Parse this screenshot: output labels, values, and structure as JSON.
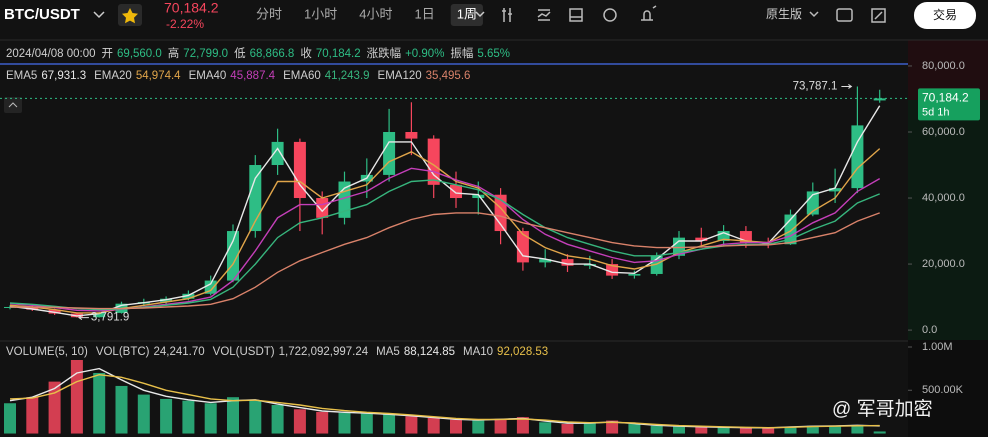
{
  "header": {
    "symbol": "BTC/USDT",
    "last_price": "70,184.2",
    "change": "-2.22%",
    "intervals": [
      "分时",
      "1小时",
      "4小时",
      "1日",
      "1周"
    ],
    "selected_interval": 4,
    "mode": "原生版",
    "trade_button": "交易"
  },
  "info_row": {
    "date": "2024/04/08 00:00",
    "items": [
      {
        "label": "开",
        "value": "69,560.0"
      },
      {
        "label": "高",
        "value": "72,799.0"
      },
      {
        "label": "低",
        "value": "68,866.8"
      },
      {
        "label": "收",
        "value": "70,184.2"
      },
      {
        "label": "涨跌幅",
        "value": "+0.90%"
      },
      {
        "label": "振幅",
        "value": "5.65%"
      }
    ]
  },
  "watermark": "@ 军哥加密",
  "chart_data": [
    {
      "type": "candlestick",
      "up_color": "#2ebd85",
      "down_color": "#f6465d",
      "ohlc": [
        [
          6800,
          7500,
          6300,
          7000
        ],
        [
          7000,
          7400,
          5800,
          6200
        ],
        [
          6200,
          6500,
          4600,
          5000
        ],
        [
          5000,
          5300,
          3791.9,
          3900
        ],
        [
          3900,
          5500,
          3800,
          5200
        ],
        [
          5200,
          8600,
          5000,
          8000
        ],
        [
          8000,
          9500,
          7200,
          8500
        ],
        [
          8500,
          10200,
          7800,
          9500
        ],
        [
          9500,
          12000,
          9000,
          11000
        ],
        [
          11000,
          16500,
          10500,
          15000
        ],
        [
          15000,
          32000,
          14500,
          30000
        ],
        [
          30000,
          53000,
          28000,
          50000
        ],
        [
          50000,
          61000,
          47000,
          57000
        ],
        [
          57000,
          58000,
          30000,
          40000
        ],
        [
          40000,
          42000,
          29000,
          34000
        ],
        [
          34000,
          48000,
          32000,
          45000
        ],
        [
          45000,
          52000,
          40000,
          47000
        ],
        [
          47000,
          67000,
          45000,
          60000
        ],
        [
          60000,
          69000,
          53000,
          58000
        ],
        [
          58000,
          59000,
          40000,
          44000
        ],
        [
          44000,
          48000,
          37000,
          40000
        ],
        [
          40000,
          45000,
          35000,
          41000
        ],
        [
          41000,
          43000,
          26000,
          30000
        ],
        [
          30000,
          31000,
          18000,
          20500
        ],
        [
          20500,
          24500,
          19000,
          21500
        ],
        [
          21500,
          23000,
          17600,
          19500
        ],
        [
          19500,
          22500,
          18500,
          20000
        ],
        [
          20000,
          21500,
          15500,
          16500
        ],
        [
          16500,
          18000,
          15600,
          17000
        ],
        [
          17000,
          23500,
          16500,
          22500
        ],
        [
          22500,
          30000,
          21500,
          28000
        ],
        [
          28000,
          31000,
          25000,
          27000
        ],
        [
          27000,
          31800,
          25500,
          30000
        ],
        [
          30000,
          31500,
          24900,
          26500
        ],
        [
          26500,
          28000,
          24800,
          26000
        ],
        [
          26000,
          36500,
          25800,
          35000
        ],
        [
          35000,
          44700,
          34500,
          42000
        ],
        [
          42000,
          48900,
          38500,
          43000
        ],
        [
          43000,
          73787.1,
          41500,
          62000
        ],
        [
          69560,
          72799,
          68866.8,
          70184.2
        ]
      ],
      "series": [
        {
          "name": "EMA5",
          "color": "#e8e8e8",
          "legend_label": "67,931.3",
          "values": [
            7200,
            6400,
            5400,
            4300,
            5000,
            7500,
            8300,
            9200,
            10500,
            14000,
            27000,
            46000,
            55000,
            44000,
            36000,
            43000,
            46000,
            57000,
            57000,
            47000,
            41500,
            41000,
            32000,
            22500,
            21500,
            20000,
            20000,
            17500,
            17200,
            21500,
            27000,
            27000,
            29500,
            27000,
            26300,
            33500,
            41000,
            43000,
            57000,
            67931.3
          ]
        },
        {
          "name": "EMA20",
          "color": "#e0a54a",
          "legend_label": "54,974.4",
          "values": [
            7500,
            7000,
            6200,
            5200,
            5200,
            6500,
            7500,
            8500,
            9500,
            12000,
            20000,
            33000,
            45000,
            45000,
            40000,
            42000,
            44000,
            51000,
            54000,
            50000,
            45000,
            43000,
            37000,
            29000,
            25000,
            22500,
            21500,
            19500,
            18500,
            20000,
            23500,
            25500,
            27500,
            27000,
            26500,
            30000,
            36000,
            40000,
            49000,
            54974.4
          ]
        },
        {
          "name": "EMA40",
          "color": "#c43fb9",
          "legend_label": "45,887.4",
          "values": [
            8000,
            7500,
            6800,
            6000,
            5800,
            6300,
            7000,
            7800,
            8600,
            10000,
            15000,
            24000,
            34000,
            38000,
            38000,
            40000,
            42000,
            46000,
            49000,
            48000,
            45500,
            43500,
            39500,
            33500,
            29000,
            26000,
            24000,
            22000,
            20500,
            21000,
            23000,
            24500,
            26000,
            26500,
            26500,
            28500,
            32500,
            35500,
            42000,
            45887.4
          ]
        },
        {
          "name": "EMA60",
          "color": "#37b57d",
          "legend_label": "41,243.9",
          "values": [
            8200,
            7800,
            7200,
            6500,
            6200,
            6400,
            6900,
            7500,
            8200,
            9300,
            13000,
            20000,
            28000,
            32500,
            34000,
            36000,
            38000,
            42000,
            45000,
            45500,
            44000,
            42500,
            39500,
            35000,
            31000,
            28000,
            26000,
            24000,
            22500,
            22500,
            23500,
            24500,
            25500,
            26000,
            26000,
            27500,
            30500,
            33000,
            38500,
            41243.9
          ]
        },
        {
          "name": "EMA120",
          "color": "#d9826a",
          "legend_label": "35,495.6",
          "values": [
            7000,
            7000,
            6900,
            6700,
            6500,
            6500,
            6700,
            7000,
            7300,
            7800,
            9500,
            13000,
            17500,
            21000,
            23500,
            26000,
            28000,
            31000,
            33500,
            35000,
            35500,
            35500,
            34500,
            32500,
            31000,
            29500,
            28000,
            26500,
            25500,
            25000,
            25000,
            25200,
            25500,
            25700,
            25800,
            26500,
            28000,
            29500,
            33000,
            35495.6
          ]
        }
      ],
      "ylim": [
        -3000,
        81200
      ],
      "yticks": [
        {
          "value": 0,
          "label": "0.0"
        },
        {
          "value": 20000,
          "label": "20,000.0"
        },
        {
          "value": 40000,
          "label": "40,000.0"
        },
        {
          "value": 60000,
          "label": "60,000.0"
        },
        {
          "value": 80000,
          "label": "80,000.0"
        }
      ],
      "price_tag": {
        "value": 70184.2,
        "label": "70,184.2",
        "countdown": "5d 1h"
      },
      "annotations": [
        {
          "label": "73,787.1",
          "candle": 38,
          "side": "left"
        },
        {
          "label": "3,791.9",
          "candle": 3,
          "side": "right"
        }
      ]
    },
    {
      "type": "bar",
      "title": "VOLUME(5, 10)",
      "legend": [
        {
          "name": "VOL(BTC)",
          "label": "24,241.70"
        },
        {
          "name": "VOL(USDT)",
          "label": "1,722,092,997.24"
        }
      ],
      "values": [
        350000,
        420000,
        600000,
        850000,
        700000,
        550000,
        450000,
        400000,
        380000,
        350000,
        420000,
        380000,
        330000,
        280000,
        250000,
        240000,
        230000,
        220000,
        200000,
        180000,
        160000,
        150000,
        170000,
        190000,
        130000,
        110000,
        120000,
        150000,
        110000,
        90000,
        80000,
        75000,
        70000,
        65000,
        60000,
        80000,
        90000,
        85000,
        100000,
        24241.7
      ],
      "series": [
        {
          "name": "MA5",
          "color": "#e8e8e8",
          "legend_label": "88,124.85",
          "values": [
            380000,
            420000,
            520000,
            700000,
            750000,
            620000,
            500000,
            430000,
            390000,
            360000,
            380000,
            390000,
            340000,
            300000,
            260000,
            245000,
            235000,
            222000,
            205000,
            185000,
            165000,
            155000,
            165000,
            175000,
            145000,
            120000,
            120000,
            135000,
            115000,
            95000,
            85000,
            78000,
            72000,
            67000,
            65000,
            75000,
            85000,
            88000,
            95000,
            88124.85
          ]
        },
        {
          "name": "MA10",
          "color": "#e8c04a",
          "legend_label": "92,028.53",
          "values": [
            400000,
            410000,
            470000,
            600000,
            680000,
            650000,
            580000,
            500000,
            450000,
            400000,
            380000,
            385000,
            360000,
            330000,
            290000,
            265000,
            245000,
            232000,
            215000,
            195000,
            175000,
            162000,
            163000,
            168000,
            155000,
            135000,
            125000,
            130000,
            122000,
            105000,
            92000,
            85000,
            78000,
            72000,
            68000,
            72000,
            80000,
            85000,
            90000,
            92028.53
          ]
        }
      ],
      "ylim": [
        -40000,
        1000000
      ],
      "yticks": [
        {
          "value": 500000,
          "label": "500.00K"
        },
        {
          "value": 1000000,
          "label": "1.00M"
        }
      ]
    }
  ]
}
